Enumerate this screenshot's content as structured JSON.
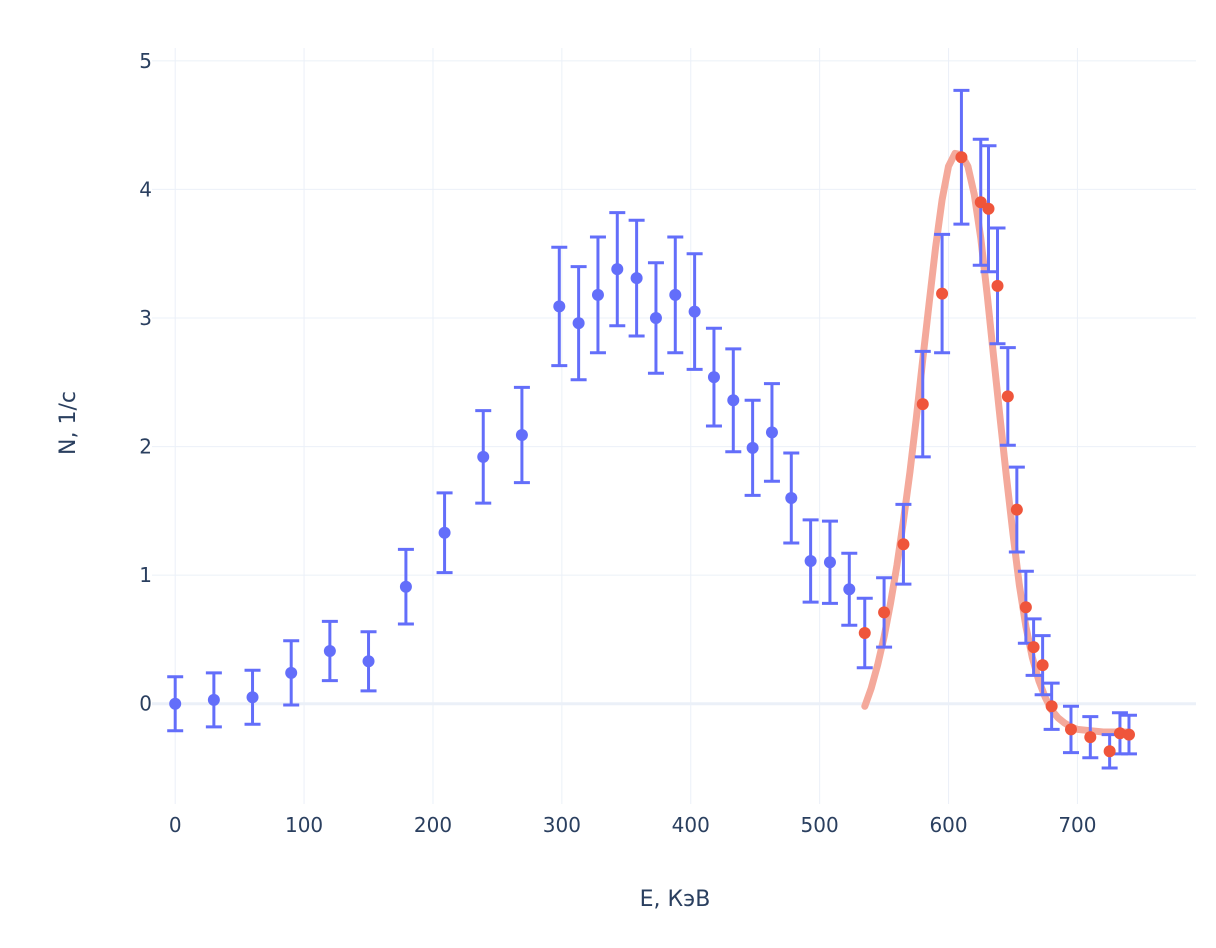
{
  "chart_data": {
    "type": "scatter",
    "xlabel": "E, КэВ",
    "ylabel": "N, 1/с",
    "xlim": [
      -18,
      792
    ],
    "ylim": [
      -0.78,
      5.1
    ],
    "x_ticks": [
      0,
      100,
      200,
      300,
      400,
      500,
      600,
      700
    ],
    "y_ticks": [
      0,
      1,
      2,
      3,
      4,
      5
    ],
    "grid": true,
    "colors": {
      "series1": "#636efa",
      "series2": "#ef553b",
      "fit": "#f4a99b",
      "grid": "#ebf0f8"
    },
    "series": [
      {
        "x": [
          0,
          30,
          60,
          90,
          120,
          150,
          179,
          209,
          239,
          269,
          298,
          313,
          328,
          343,
          358,
          373,
          388,
          403,
          418,
          433,
          448,
          463,
          478,
          493,
          508,
          523
        ],
        "y": [
          0.0,
          0.03,
          0.05,
          0.24,
          0.41,
          0.33,
          0.91,
          1.33,
          1.92,
          2.09,
          3.09,
          2.96,
          3.18,
          3.38,
          3.31,
          3.0,
          3.18,
          3.05,
          2.54,
          2.36,
          1.99,
          2.11,
          1.6,
          1.11,
          1.1,
          0.89
        ],
        "error": [
          0.21,
          0.21,
          0.21,
          0.25,
          0.23,
          0.23,
          0.29,
          0.31,
          0.36,
          0.37,
          0.46,
          0.44,
          0.45,
          0.44,
          0.45,
          0.43,
          0.45,
          0.45,
          0.38,
          0.4,
          0.37,
          0.38,
          0.35,
          0.32,
          0.32,
          0.28
        ]
      },
      {
        "x": [
          535,
          550,
          565,
          580,
          595,
          610,
          625,
          631,
          638,
          646,
          653,
          660,
          666,
          673,
          680,
          695,
          710,
          725,
          733,
          740
        ],
        "y": [
          0.55,
          0.71,
          1.24,
          2.33,
          3.19,
          4.25,
          3.9,
          3.85,
          3.25,
          2.39,
          1.51,
          0.75,
          0.44,
          0.3,
          -0.02,
          -0.2,
          -0.26,
          -0.37,
          -0.23,
          -0.24
        ],
        "error": [
          0.27,
          0.27,
          0.31,
          0.41,
          0.46,
          0.52,
          0.49,
          0.49,
          0.45,
          0.38,
          0.33,
          0.28,
          0.22,
          0.23,
          0.18,
          0.18,
          0.16,
          0.13,
          0.16,
          0.15
        ]
      },
      {
        "type": "line",
        "x": [
          535,
          540,
          545,
          550,
          555,
          560,
          565,
          570,
          575,
          580,
          585,
          590,
          595,
          600,
          605,
          610,
          615,
          620,
          625,
          630,
          635,
          640,
          645,
          650,
          655,
          660,
          665,
          670,
          675,
          680,
          685,
          690,
          695,
          700,
          710,
          720,
          730,
          740
        ],
        "y": [
          -0.02,
          0.12,
          0.3,
          0.52,
          0.78,
          1.08,
          1.42,
          1.8,
          2.22,
          2.68,
          3.12,
          3.55,
          3.92,
          4.18,
          4.28,
          4.27,
          4.18,
          3.96,
          3.62,
          3.18,
          2.7,
          2.22,
          1.76,
          1.32,
          0.92,
          0.6,
          0.36,
          0.18,
          0.05,
          -0.05,
          -0.11,
          -0.15,
          -0.18,
          -0.2,
          -0.21,
          -0.22,
          -0.22,
          -0.22
        ]
      }
    ]
  }
}
